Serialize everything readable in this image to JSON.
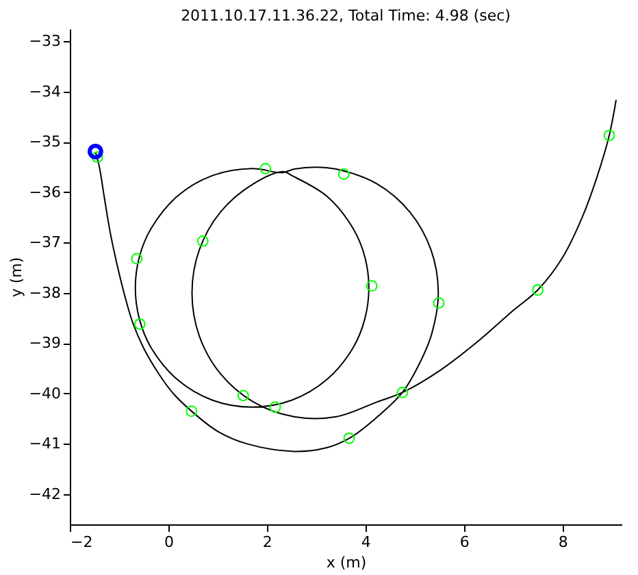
{
  "chart_data": {
    "type": "line",
    "title": "2011.10.17.11.36.22, Total Time: 4.98 (sec)",
    "xlabel": "x (m)",
    "ylabel": "y (m)",
    "xlim": [
      -2,
      9.2
    ],
    "ylim": [
      -42.6,
      -32.75
    ],
    "xticks": [
      -2,
      0,
      2,
      4,
      6,
      8
    ],
    "yticks": [
      -42,
      -41,
      -40,
      -39,
      -38,
      -37,
      -36,
      -35,
      -34,
      -33
    ],
    "grid": false,
    "series": [
      {
        "type": "line",
        "color": "#000000",
        "marker": "none",
        "line_style": "solid",
        "x": [
          -1.48,
          -1.4,
          -1.3,
          -1.18,
          -1.05,
          -0.9,
          -0.72,
          -0.5,
          -0.2,
          0.1,
          0.47,
          1.0,
          1.6,
          2.55,
          3.2,
          3.67,
          4.2,
          4.75,
          5.1,
          5.35,
          5.48,
          5.33,
          4.9,
          4.23,
          3.41,
          2.98,
          2.55,
          2.31,
          1.7,
          0.89,
          0.18,
          -0.35,
          -0.59,
          -0.67,
          -0.59,
          -0.35,
          0.18,
          0.89,
          1.7,
          2.51,
          3.22,
          3.75,
          3.99,
          4.07,
          3.99,
          3.75,
          3.22,
          2.51,
          2.33,
          1.73,
          1.06,
          0.63,
          0.48,
          0.63,
          1.06,
          1.73,
          2.55,
          3.41,
          4.23,
          4.75,
          5.5,
          6.3,
          7.0,
          7.5,
          8.0,
          8.4,
          8.7,
          8.95,
          9.09
        ],
        "values": [
          -35.2,
          -35.5,
          -36.1,
          -36.8,
          -37.4,
          -38.0,
          -38.6,
          -39.1,
          -39.6,
          -40.0,
          -40.35,
          -40.75,
          -41.0,
          -41.15,
          -41.08,
          -40.89,
          -40.5,
          -39.98,
          -39.4,
          -38.8,
          -38.0,
          -37.14,
          -36.39,
          -35.83,
          -35.54,
          -35.5,
          -35.54,
          -35.61,
          -35.53,
          -35.67,
          -36.08,
          -36.72,
          -37.29,
          -37.9,
          -38.51,
          -39.09,
          -39.72,
          -40.13,
          -40.27,
          -40.13,
          -39.72,
          -39.09,
          -38.51,
          -37.9,
          -37.29,
          -36.72,
          -36.08,
          -35.67,
          -35.59,
          -35.83,
          -36.39,
          -37.14,
          -38.0,
          -38.86,
          -39.61,
          -40.17,
          -40.46,
          -40.46,
          -40.17,
          -39.98,
          -39.55,
          -38.95,
          -38.35,
          -37.94,
          -37.3,
          -36.5,
          -35.7,
          -34.87,
          -34.16
        ]
      },
      {
        "type": "scatter",
        "color": "#00ff00",
        "marker": "circle",
        "x": [
          -1.44,
          -0.64,
          0.7,
          1.97,
          3.56,
          4.13,
          5.49,
          7.5,
          8.95,
          4.75,
          3.67,
          2.17,
          1.52,
          0.47,
          -0.58
        ],
        "values": [
          -35.3,
          -37.32,
          -36.97,
          -35.53,
          -35.64,
          -37.86,
          -38.2,
          -37.94,
          -34.87,
          -39.98,
          -40.89,
          -40.27,
          -40.04,
          -40.35,
          -38.62
        ]
      },
      {
        "type": "scatter",
        "color": "#0000ff",
        "marker": "circle",
        "x": [
          -1.48
        ],
        "values": [
          -35.19
        ]
      }
    ]
  }
}
